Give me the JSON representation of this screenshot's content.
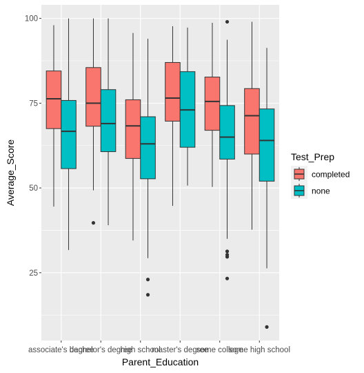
{
  "chart_data": {
    "type": "boxplot",
    "xlabel": "Parent_Education",
    "ylabel": "Average_Score",
    "ylim": [
      5,
      104
    ],
    "y_ticks": [
      25,
      50,
      75,
      100
    ],
    "grid": true,
    "legend_position": "right",
    "legend": {
      "title": "Test_Prep",
      "entries": [
        {
          "label": "completed",
          "color": "#F8766D"
        },
        {
          "label": "none",
          "color": "#00BFC4"
        }
      ]
    },
    "categories": [
      "associate's degree",
      "bachelor's degree",
      "high school",
      "master's degree",
      "some college",
      "some high school"
    ],
    "series": [
      {
        "name": "completed",
        "color": "#F8766D",
        "boxes": [
          {
            "min": 44.5,
            "q1": 67.5,
            "median": 76.3,
            "q3": 84.5,
            "max": 98,
            "outliers": []
          },
          {
            "min": 49.3,
            "q1": 68.2,
            "median": 75.0,
            "q3": 85.5,
            "max": 100,
            "outliers": [
              39.7
            ]
          },
          {
            "min": 34.5,
            "q1": 58.7,
            "median": 68.3,
            "q3": 76.0,
            "max": 95.7,
            "outliers": []
          },
          {
            "min": 44.7,
            "q1": 69.7,
            "median": 76.5,
            "q3": 87.0,
            "max": 97.7,
            "outliers": []
          },
          {
            "min": 50.3,
            "q1": 67.0,
            "median": 75.5,
            "q3": 82.7,
            "max": 98.7,
            "outliers": []
          },
          {
            "min": 37.7,
            "q1": 60.0,
            "median": 71.3,
            "q3": 79.3,
            "max": 99.0,
            "outliers": []
          }
        ]
      },
      {
        "name": "none",
        "color": "#00BFC4",
        "boxes": [
          {
            "min": 31.7,
            "q1": 55.7,
            "median": 66.7,
            "q3": 75.8,
            "max": 100,
            "outliers": []
          },
          {
            "min": 39.0,
            "q1": 60.7,
            "median": 69.0,
            "q3": 79.0,
            "max": 100,
            "outliers": []
          },
          {
            "min": 29.3,
            "q1": 52.7,
            "median": 63.0,
            "q3": 71.0,
            "max": 94.0,
            "outliers": [
              23.0,
              18.5
            ]
          },
          {
            "min": 50.7,
            "q1": 62.0,
            "median": 73.0,
            "q3": 84.3,
            "max": 97.3,
            "outliers": []
          },
          {
            "min": 35.0,
            "q1": 58.5,
            "median": 65.0,
            "q3": 74.3,
            "max": 93.7,
            "outliers": [
              99.0,
              31.3,
              30.3,
              29.7,
              23.3
            ]
          },
          {
            "min": 26.3,
            "q1": 52.0,
            "median": 64.0,
            "q3": 73.3,
            "max": 91.3,
            "outliers": [
              9.0
            ]
          }
        ]
      }
    ]
  },
  "colors": {
    "panel_bg": "#EBEBEB",
    "grid_major": "#FFFFFF",
    "completed": "#F8766D",
    "none": "#00BFC4"
  }
}
